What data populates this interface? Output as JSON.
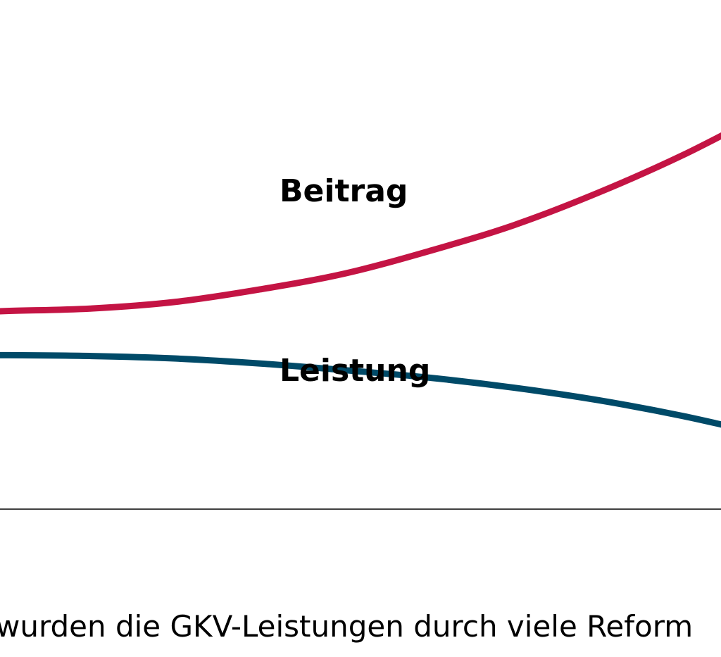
{
  "chart_data": {
    "type": "line",
    "x": [
      0,
      1,
      2,
      3,
      4,
      5,
      6,
      7,
      8,
      9,
      10
    ],
    "series": [
      {
        "name": "Beitrag",
        "color": "#C41444",
        "values": [
          50.0,
          50.3,
          50.6,
          51.4,
          52.9,
          54.8,
          57.5,
          60.6,
          64.5,
          69.0,
          74.2
        ]
      },
      {
        "name": "Leistung",
        "color": "#004A68",
        "values": [
          45.0,
          45.0,
          44.9,
          44.6,
          44.0,
          43.2,
          42.3,
          41.1,
          39.6,
          37.7,
          35.4
        ]
      }
    ],
    "xlim": [
      0,
      10
    ],
    "ylim": [
      30,
      80
    ],
    "title": "",
    "xlabel": "",
    "ylabel": "",
    "grid": false,
    "axis_color": "#000000"
  },
  "caption": "wurden die GKV-Leistungen durch viele Reform"
}
